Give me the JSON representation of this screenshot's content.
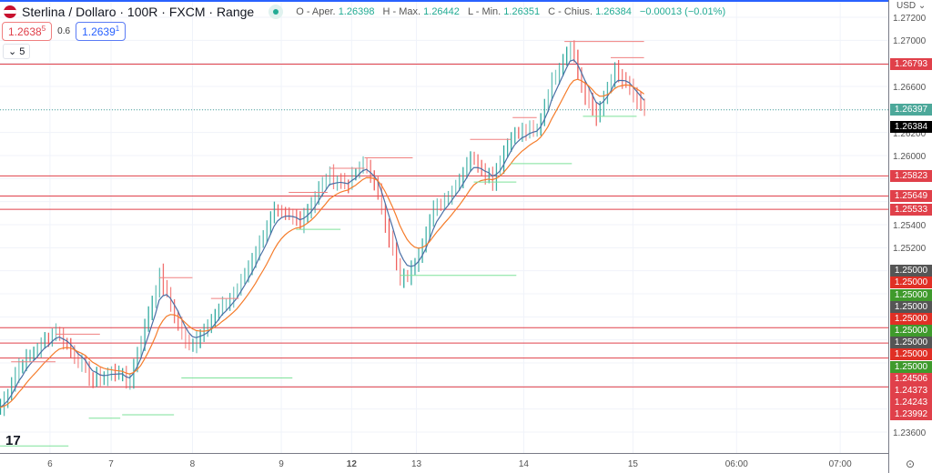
{
  "header": {
    "symbol": "Sterlina / Dollaro · 100R · FXCM · Range",
    "ohlc": [
      {
        "label": "O - Aper.",
        "value": "1.26398"
      },
      {
        "label": "H - Max.",
        "value": "1.26442"
      },
      {
        "label": "L - Min.",
        "value": "1.26351"
      },
      {
        "label": "C - Chius.",
        "value": "1.26384"
      }
    ],
    "change": "−0.00013 (−0.01%)"
  },
  "quote": {
    "bid": "1.2638",
    "bid_sup": "5",
    "spread": "0.6",
    "ask": "1.2639",
    "ask_sup": "1"
  },
  "indicators_toggle": "5",
  "axis": {
    "currency": "USD",
    "ticks": [
      "1.27200",
      "1.27000",
      "1.26600",
      "1.26200",
      "1.26000",
      "1.25400",
      "1.25200",
      "1.23600"
    ],
    "tags": [
      {
        "text": "1.26793",
        "price": 1.26793,
        "color": "#e0404a"
      },
      {
        "text": "1.26397",
        "price": 1.26397,
        "color": "#4ca89a"
      },
      {
        "text": "1.26384",
        "price": 1.2625,
        "color": "#000000"
      },
      {
        "text": "1.25823",
        "price": 1.25823,
        "color": "#e0404a"
      },
      {
        "text": "1.25649",
        "price": 1.25649,
        "color": "#e0404a"
      },
      {
        "text": "1.25533",
        "price": 1.25533,
        "color": "#e0404a"
      },
      {
        "text": "1.25000",
        "price": 1.25,
        "color": "#555555"
      },
      {
        "text": "1.25000",
        "price": 1.24896,
        "color": "#e02f25"
      },
      {
        "text": "1.25000",
        "price": 1.24792,
        "color": "#3f9a2c"
      },
      {
        "text": "1.25000",
        "price": 1.24688,
        "color": "#555555"
      },
      {
        "text": "1.25000",
        "price": 1.24584,
        "color": "#e02f25"
      },
      {
        "text": "1.25000",
        "price": 1.2448,
        "color": "#3f9a2c"
      },
      {
        "text": "1.25000",
        "price": 1.24376,
        "color": "#555555"
      },
      {
        "text": "1.25000",
        "price": 1.24272,
        "color": "#e02f25"
      },
      {
        "text": "1.25000",
        "price": 1.24168,
        "color": "#3f9a2c"
      },
      {
        "text": "1.24506",
        "price": 1.24064,
        "color": "#e0404a"
      },
      {
        "text": "1.24373",
        "price": 1.2396,
        "color": "#e0404a"
      },
      {
        "text": "1.24243",
        "price": 1.23856,
        "color": "#e0404a"
      },
      {
        "text": "1.23992",
        "price": 1.23752,
        "color": "#e0404a"
      }
    ]
  },
  "time_axis": [
    {
      "label": "6",
      "idx": 13.5
    },
    {
      "label": "7",
      "idx": 30
    },
    {
      "label": "8",
      "idx": 52
    },
    {
      "label": "9",
      "idx": 76
    },
    {
      "label": "12",
      "idx": 95
    },
    {
      "label": "13",
      "idx": 112.5
    },
    {
      "label": "14",
      "idx": 141.5
    },
    {
      "label": "15",
      "idx": 171
    },
    {
      "label": "06:00",
      "idx": 199
    },
    {
      "label": "07:00",
      "idx": 227
    }
  ],
  "logo": "17",
  "chart_data": {
    "type": "range-bars",
    "ylim": [
      1.2348,
      1.2734
    ],
    "slots": 240,
    "path": [
      [
        0,
        1.23813
      ],
      [
        5,
        1.24168
      ],
      [
        15,
        1.24484
      ],
      [
        25,
        1.2405
      ],
      [
        32,
        1.24129
      ],
      [
        34.5,
        1.2401
      ],
      [
        43,
        1.24958
      ],
      [
        50.5,
        1.24326
      ],
      [
        58,
        1.24603
      ],
      [
        64,
        1.2484
      ],
      [
        74,
        1.25511
      ],
      [
        81,
        1.25432
      ],
      [
        88.5,
        1.25826
      ],
      [
        93.5,
        1.25747
      ],
      [
        98.5,
        1.25945
      ],
      [
        102,
        1.25668
      ],
      [
        108,
        1.24918
      ],
      [
        111,
        1.24997
      ],
      [
        117,
        1.25511
      ],
      [
        123,
        1.25747
      ],
      [
        127,
        1.25984
      ],
      [
        133,
        1.25787
      ],
      [
        138,
        1.26182
      ],
      [
        145,
        1.26221
      ],
      [
        149,
        1.26655
      ],
      [
        154,
        1.26971
      ],
      [
        157.5,
        1.26537
      ],
      [
        161,
        1.2634
      ],
      [
        166,
        1.26734
      ],
      [
        170,
        1.26576
      ],
      [
        174,
        1.26384
      ]
    ],
    "h_lines": [
      1.26793,
      1.25823,
      1.25649,
      1.25533,
      1.24506,
      1.24373,
      1.24243,
      1.23992
    ],
    "current_price": 1.26397,
    "swing_highs": [
      [
        152.5,
        174,
        1.2699
      ],
      [
        165,
        174,
        1.2685
      ],
      [
        98.5,
        111.5,
        1.2598
      ],
      [
        89,
        98.5,
        1.2589
      ],
      [
        78,
        88.5,
        1.2568
      ],
      [
        43,
        52,
        1.2494
      ],
      [
        57,
        64.5,
        1.2476
      ],
      [
        15,
        27,
        1.2445
      ],
      [
        3,
        15,
        1.2421
      ],
      [
        127,
        138,
        1.2614
      ],
      [
        138.5,
        145,
        1.2633
      ]
    ],
    "swing_lows": [
      [
        157.5,
        172,
        1.2634
      ],
      [
        138,
        154.5,
        1.2593
      ],
      [
        128,
        139.5,
        1.2577
      ],
      [
        108,
        139.5,
        1.2496
      ],
      [
        80,
        92,
        1.2536
      ],
      [
        49,
        79,
        1.2407
      ],
      [
        33,
        47,
        1.2375
      ],
      [
        24,
        32.5,
        1.2372
      ],
      [
        0,
        18.5,
        1.2348
      ]
    ],
    "colors": {
      "up": "#26a69a",
      "down": "#ef5350",
      "fast_ma": "#4a6fa5",
      "slow_ma": "#f57c2b",
      "level": "#e0404a",
      "low_level": "#7ee29a"
    }
  }
}
